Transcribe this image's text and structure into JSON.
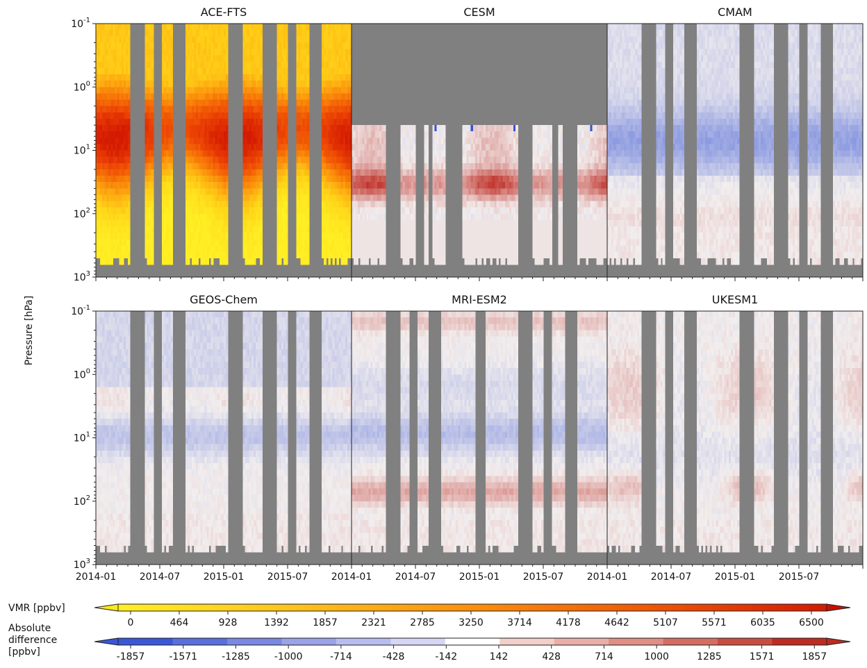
{
  "chart_data": {
    "type": "heatmap",
    "ylabel": "Pressure [hPa]",
    "y_scale": "log",
    "y_ticks": [
      "10^-1",
      "10^0",
      "10^1",
      "10^2",
      "10^3"
    ],
    "x_tick_labels": [
      "2014-01",
      "2014-07",
      "2015-01",
      "2015-07"
    ],
    "x_range": [
      "2014-01",
      "2016-01"
    ],
    "ylim": [
      1000,
      0.1
    ],
    "missing_color": "#808080",
    "panels": [
      {
        "title": "ACE-FTS",
        "type": "vmr"
      },
      {
        "title": "CESM",
        "type": "diff",
        "top_missing_above_hPa": 4
      },
      {
        "title": "CMAM",
        "type": "diff"
      },
      {
        "title": "GEOS-Chem",
        "type": "diff"
      },
      {
        "title": "MRI-ESM2",
        "type": "diff"
      },
      {
        "title": "UKESM1",
        "type": "diff"
      }
    ],
    "colorbars": [
      {
        "label": "VMR [ppbv]",
        "ticks": [
          "0",
          "464",
          "928",
          "1392",
          "1857",
          "2321",
          "2785",
          "3250",
          "3714",
          "4178",
          "4642",
          "5107",
          "5571",
          "6035",
          "6500"
        ],
        "colors": [
          "#ffe81a",
          "#ffd414",
          "#ffbe10",
          "#ffa70c",
          "#ff9009",
          "#fb7807",
          "#f66205",
          "#ef4e04",
          "#e83a03",
          "#df2a02",
          "#d41c02",
          "#c81002"
        ]
      },
      {
        "label_lines": [
          "Absolute",
          "difference",
          "[ppbv]"
        ],
        "ticks": [
          "-1857",
          "-1571",
          "-1285",
          "-1000",
          "-714",
          "-428",
          "-142",
          "142",
          "428",
          "714",
          "1000",
          "1285",
          "1571",
          "1857"
        ],
        "colors": [
          "#3a57d6",
          "#5a6fdc",
          "#7a88e2",
          "#9aa2e8",
          "#b8bcee",
          "#d5d6f4",
          "#ffffff",
          "#f2cfc9",
          "#e9afa6",
          "#df8f84",
          "#d46e62",
          "#c94c41",
          "#be2b22"
        ]
      }
    ]
  }
}
